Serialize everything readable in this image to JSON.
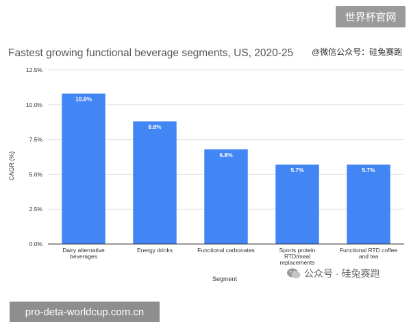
{
  "watermarks": {
    "top_right_badge": "世界杯官网",
    "bottom_left_badge": "pro-deta-worldcup.com.cn",
    "top_right_text": "@微信公众号：硅兔赛跑",
    "bottom_right_text": "公众号 · 硅兔赛跑",
    "bottom_right_icon": "wechat-icon"
  },
  "chart_data": {
    "type": "bar",
    "title": "Fastest growing functional beverage segments, US, 2020-25",
    "xlabel": "Segment",
    "ylabel": "CAGR (%)",
    "ylim": [
      0,
      12.5
    ],
    "yticks": [
      "0.0%",
      "2.5%",
      "5.0%",
      "7.5%",
      "10.0%",
      "12.5%"
    ],
    "grid": true,
    "legend": "none",
    "categories": [
      [
        "Dairy alternative",
        "beverages"
      ],
      [
        "Energy drinks"
      ],
      [
        "Functional carbonates"
      ],
      [
        "Sports protein",
        "RTD/meal",
        "replacements"
      ],
      [
        "Functional RTD coffee",
        "and tea"
      ]
    ],
    "values": [
      10.8,
      8.8,
      6.8,
      5.7,
      5.7
    ],
    "data_labels": [
      "10.8%",
      "8.8%",
      "6.8%",
      "5.7%",
      "5.7%"
    ],
    "colors": {
      "bar": "#4285f4",
      "grid": "#e3e3e3",
      "axis": "#333333",
      "title": "#555555",
      "label_text": "#ffffff"
    }
  }
}
